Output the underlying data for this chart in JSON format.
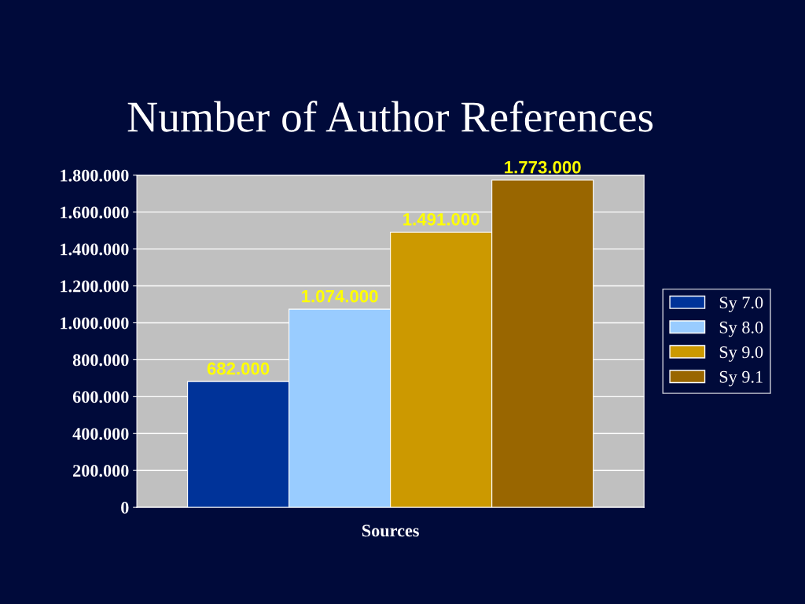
{
  "chart_data": {
    "type": "bar",
    "title": "Number of Author References",
    "xlabel": "Sources",
    "categories": [
      null
    ],
    "series": [
      {
        "name": "Sy 7.0",
        "color": "#003399",
        "values": [
          682000
        ]
      },
      {
        "name": "Sy 8.0",
        "color": "#99ccff",
        "values": [
          1074000
        ]
      },
      {
        "name": "Sy 9.0",
        "color": "#cc9900",
        "values": [
          1491000
        ]
      },
      {
        "name": "Sy 9.1",
        "color": "#996600",
        "values": [
          1773000
        ]
      }
    ],
    "ylim": [
      0,
      1800000
    ],
    "yticks": [
      0,
      {
        "value": 200000,
        "label": "200.000"
      },
      {
        "value": 400000,
        "label": "400.000"
      },
      {
        "value": 600000,
        "label": "600.000"
      },
      {
        "value": 800000,
        "label": "800.000"
      },
      {
        "value": 1000000,
        "label": "1.000.000"
      },
      {
        "value": 1200000,
        "label": "1.200.000"
      },
      {
        "value": 1400000,
        "label": "1.400.000"
      },
      {
        "value": 1600000,
        "label": "1.600.000"
      },
      {
        "value": 1800000,
        "label": "1.800.000"
      }
    ],
    "value_labels": [
      "682.000",
      "1.074.000",
      "1.491.000",
      "1.773.000"
    ],
    "grid": "y",
    "legend": "right"
  }
}
